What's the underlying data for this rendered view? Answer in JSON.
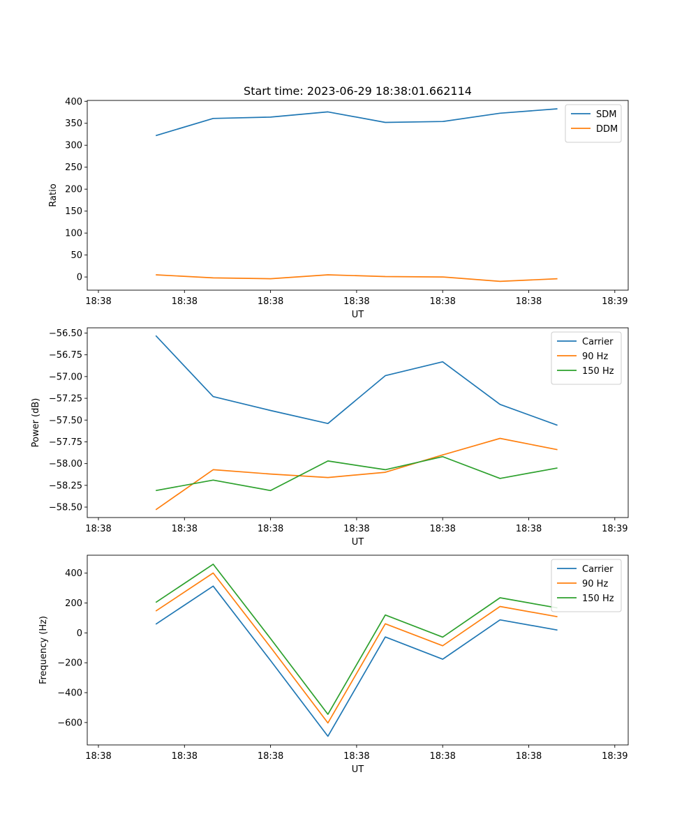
{
  "title": "Start time: 2023-06-29 18:38:01.662114",
  "colors": {
    "blue": "#1f77b4",
    "orange": "#ff7f0e",
    "green": "#2ca02c"
  },
  "chart_data": [
    {
      "type": "line",
      "title": "Start time: 2023-06-29 18:38:01.662114",
      "xlabel": "UT",
      "ylabel": "Ratio",
      "x_tick_labels": [
        "18:38",
        "18:38",
        "18:38",
        "18:38",
        "18:38",
        "18:38",
        "18:39"
      ],
      "y_ticks": [
        "0",
        "50",
        "100",
        "150",
        "200",
        "250",
        "300",
        "350",
        "400"
      ],
      "ylim": [
        -30,
        402
      ],
      "legend": "top-right",
      "series": [
        {
          "name": "SDM",
          "color": "#1f77b4",
          "values": [
            322,
            361,
            364,
            376,
            352,
            354,
            373,
            383
          ]
        },
        {
          "name": "DDM",
          "color": "#ff7f0e",
          "values": [
            5,
            -2,
            -4,
            5,
            1,
            0,
            -10,
            -4
          ]
        }
      ]
    },
    {
      "type": "line",
      "xlabel": "UT",
      "ylabel": "Power (dB)",
      "x_tick_labels": [
        "18:38",
        "18:38",
        "18:38",
        "18:38",
        "18:38",
        "18:38",
        "18:39"
      ],
      "y_ticks": [
        "−58.50",
        "−58.25",
        "−58.00",
        "−57.75",
        "−57.50",
        "−57.25",
        "−57.00",
        "−56.75",
        "−56.50"
      ],
      "ylim": [
        -58.62,
        -56.44
      ],
      "legend": "top-right",
      "series": [
        {
          "name": "Carrier",
          "color": "#1f77b4",
          "values": [
            -56.53,
            -57.23,
            -57.39,
            -57.54,
            -56.99,
            -56.83,
            -57.32,
            -57.56
          ]
        },
        {
          "name": "90 Hz",
          "color": "#ff7f0e",
          "values": [
            -58.53,
            -58.07,
            -58.12,
            -58.16,
            -58.1,
            -57.9,
            -57.71,
            -57.84
          ]
        },
        {
          "name": "150 Hz",
          "color": "#2ca02c",
          "values": [
            -58.31,
            -58.19,
            -58.31,
            -57.97,
            -58.07,
            -57.92,
            -58.17,
            -58.05
          ]
        }
      ]
    },
    {
      "type": "line",
      "xlabel": "UT",
      "ylabel": "Frequency (Hz)",
      "x_tick_labels": [
        "18:38",
        "18:38",
        "18:38",
        "18:38",
        "18:38",
        "18:38",
        "18:39"
      ],
      "y_ticks": [
        "−600",
        "−400",
        "−200",
        "0",
        "200",
        "400"
      ],
      "ylim": [
        -750,
        520
      ],
      "legend": "top-right",
      "series": [
        {
          "name": "Carrier",
          "color": "#1f77b4",
          "values": [
            58,
            313,
            -185,
            -692,
            -27,
            -176,
            87,
            19
          ]
        },
        {
          "name": "90 Hz",
          "color": "#ff7f0e",
          "values": [
            146,
            401,
            -96,
            -603,
            61,
            -86,
            177,
            108
          ]
        },
        {
          "name": "150 Hz",
          "color": "#2ca02c",
          "values": [
            204,
            460,
            -38,
            -545,
            120,
            -28,
            235,
            167
          ]
        }
      ]
    }
  ]
}
